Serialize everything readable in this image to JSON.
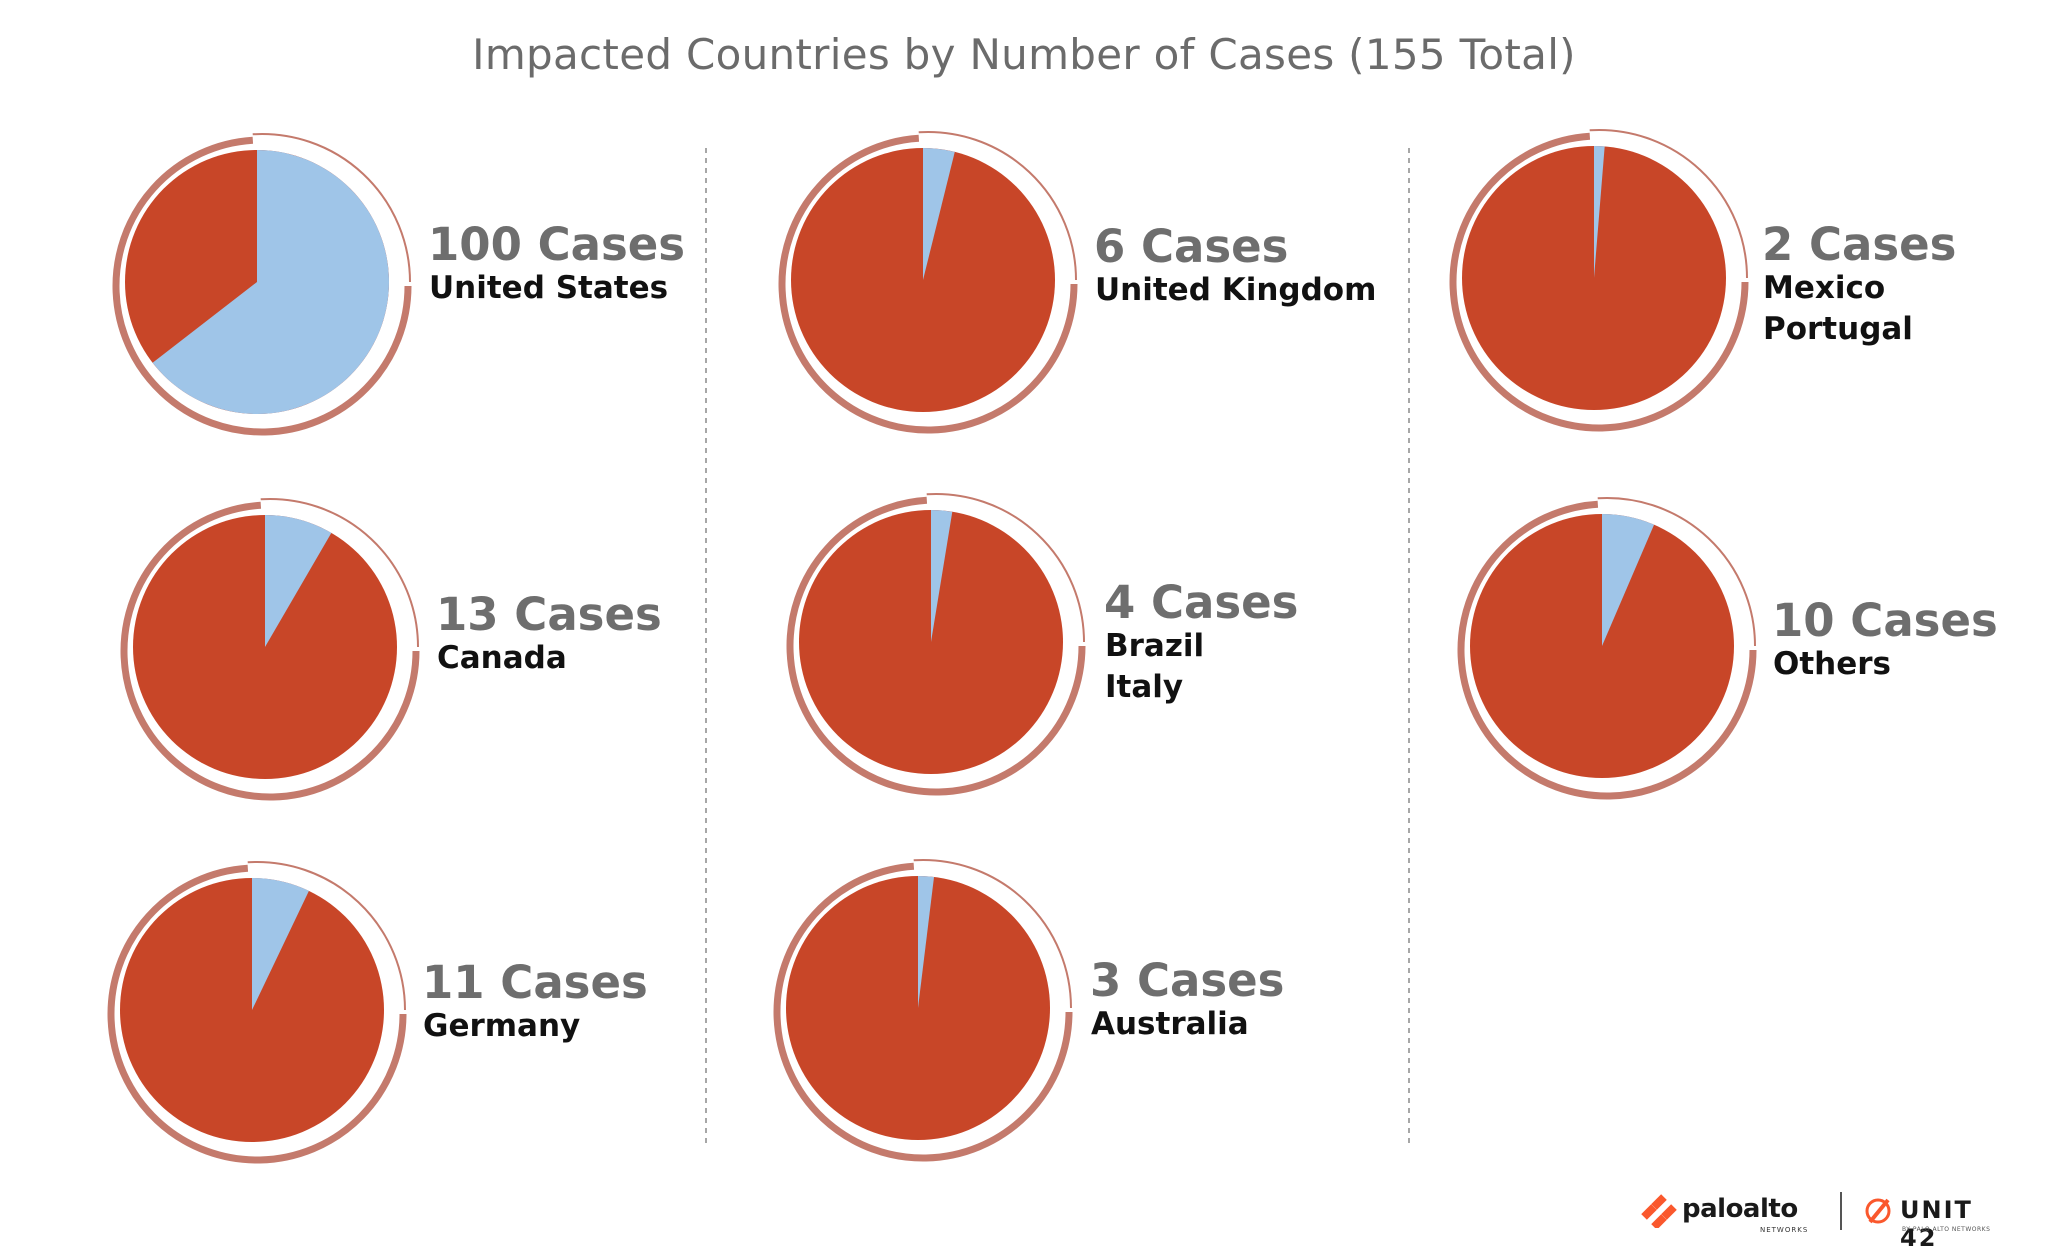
{
  "chart_data": {
    "type": "pie",
    "title": "Impacted Countries by Number of Cases (155 Total)",
    "total": 155,
    "series_colors": {
      "cases": "#9fc5e8",
      "rest": "#c84628",
      "ring": "#c47a6c"
    },
    "panels": [
      {
        "count": 100,
        "count_label": "100 Cases",
        "countries": [
          "United States"
        ]
      },
      {
        "count": 13,
        "count_label": "13 Cases",
        "countries": [
          "Canada"
        ]
      },
      {
        "count": 11,
        "count_label": "11 Cases",
        "countries": [
          "Germany"
        ]
      },
      {
        "count": 6,
        "count_label": "6 Cases",
        "countries": [
          "United Kingdom"
        ]
      },
      {
        "count": 4,
        "count_label": "4 Cases",
        "countries": [
          "Brazil",
          "Italy"
        ]
      },
      {
        "count": 3,
        "count_label": "3 Cases",
        "countries": [
          "Australia"
        ]
      },
      {
        "count": 2,
        "count_label": "2 Cases",
        "countries": [
          "Mexico",
          "Portugal"
        ]
      },
      {
        "count": 10,
        "count_label": "10 Cases",
        "countries": [
          "Others"
        ]
      }
    ]
  },
  "branding": {
    "paloalto_text": "paloalto",
    "paloalto_sub": "NETWORKS",
    "unit42_text": "UNIT 42",
    "unit42_sub": "BY PALO ALTO NETWORKS",
    "logo_color": "#fa582d"
  }
}
